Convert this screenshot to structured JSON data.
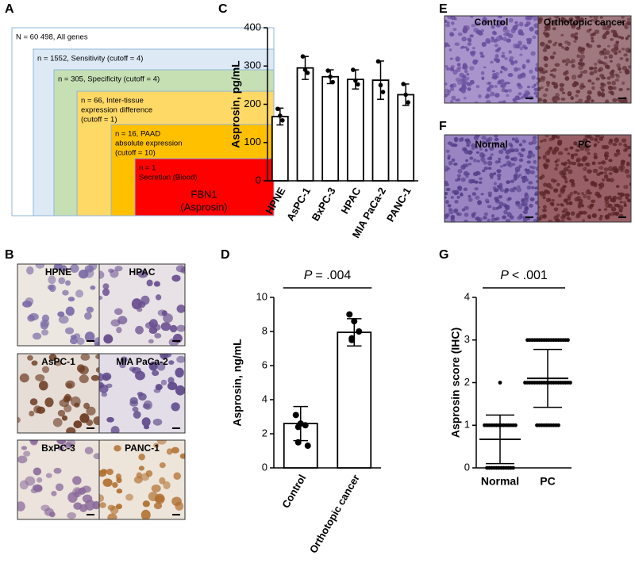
{
  "panel_labels": {
    "a": "A",
    "b": "B",
    "c": "C",
    "d": "D",
    "e": "E",
    "f": "F",
    "g": "G"
  },
  "diagram": {
    "boxes": [
      {
        "lines": [
          "N = 60 498, All genes"
        ]
      },
      {
        "lines": [
          "n = 1552, Sensitivity (cutoff = 4)"
        ]
      },
      {
        "lines": [
          "n = 305, Specificity (cutoff = 4)"
        ]
      },
      {
        "lines": [
          "n = 66, Inter-tissue",
          "expression difference",
          "(cutoff = 1)"
        ]
      },
      {
        "lines": [
          "n = 16, PAAD",
          "absolute expression",
          "(cutoff = 10)"
        ]
      },
      {
        "lines": [
          "n = 1",
          "Secretion (Blood)"
        ],
        "result": [
          "FBN1",
          "(Asprosin)"
        ]
      }
    ]
  },
  "micrographs": {
    "b": [
      "HPNE",
      "HPAC",
      "AsPC-1",
      "MIA PaCa-2",
      "BxPC-3",
      "PANC-1"
    ],
    "e": [
      "Control",
      "Orthotopic cancer"
    ],
    "f": [
      "Normal",
      "PC"
    ]
  },
  "chart_data": [
    {
      "type": "bar",
      "ylabel": "Asprosin, pg/mL",
      "categories": [
        "HPNE",
        "AsPC-1",
        "BxPC-3",
        "HPAC",
        "MIA PaCa-2",
        "PANC-1"
      ],
      "values": [
        168,
        295,
        272,
        265,
        263,
        225
      ],
      "errors": [
        22,
        30,
        18,
        25,
        50,
        28
      ],
      "points": [
        [
          188,
          170,
          158
        ],
        [
          325,
          290,
          282
        ],
        [
          288,
          272,
          258
        ],
        [
          290,
          262,
          252
        ],
        [
          312,
          250,
          232
        ],
        [
          253,
          225,
          205
        ]
      ],
      "ylim": [
        0,
        400
      ],
      "yticks": [
        0,
        100,
        200,
        300,
        400
      ]
    },
    {
      "type": "bar",
      "ylabel": "Asprosin, ng/mL",
      "annotation": {
        "italic": "P",
        "text": "= .004"
      },
      "categories": [
        "Control",
        "Orthotopic cancer"
      ],
      "values": [
        2.6,
        7.95
      ],
      "errors": [
        1.0,
        0.8
      ],
      "points": [
        [
          3.1,
          2.6,
          2.5,
          2.4,
          1.5,
          1.3
        ],
        [
          9.0,
          8.6,
          8.0,
          7.6,
          7.5
        ]
      ],
      "ylim": [
        0,
        10
      ],
      "yticks": [
        0,
        2,
        4,
        6,
        8,
        10
      ]
    },
    {
      "type": "strip",
      "ylabel": "Asprosin score (IHC)",
      "annotation": {
        "italic": "P",
        "text": "< .001"
      },
      "categories": [
        "Normal",
        "PC"
      ],
      "values": [
        0.67,
        2.1
      ],
      "errors": [
        0.57,
        0.68
      ],
      "points": [
        [
          2,
          1,
          1,
          1,
          1,
          1,
          1,
          1,
          1,
          1,
          1,
          1,
          1,
          1,
          1,
          0,
          0,
          0,
          0,
          0,
          0,
          0,
          0,
          0,
          0,
          0,
          0
        ],
        [
          3,
          3,
          3,
          3,
          3,
          3,
          3,
          3,
          3,
          3,
          3,
          3,
          3,
          3,
          3,
          3,
          3,
          3,
          2,
          2,
          2,
          2,
          2,
          2,
          2,
          2,
          2,
          2,
          2,
          2,
          2,
          2,
          2,
          2,
          2,
          2,
          2,
          2,
          1,
          1,
          1,
          1,
          1,
          1,
          1,
          1,
          1,
          1
        ]
      ],
      "ylim": [
        0,
        4
      ],
      "yticks": [
        0,
        1,
        2,
        3,
        4
      ]
    }
  ]
}
